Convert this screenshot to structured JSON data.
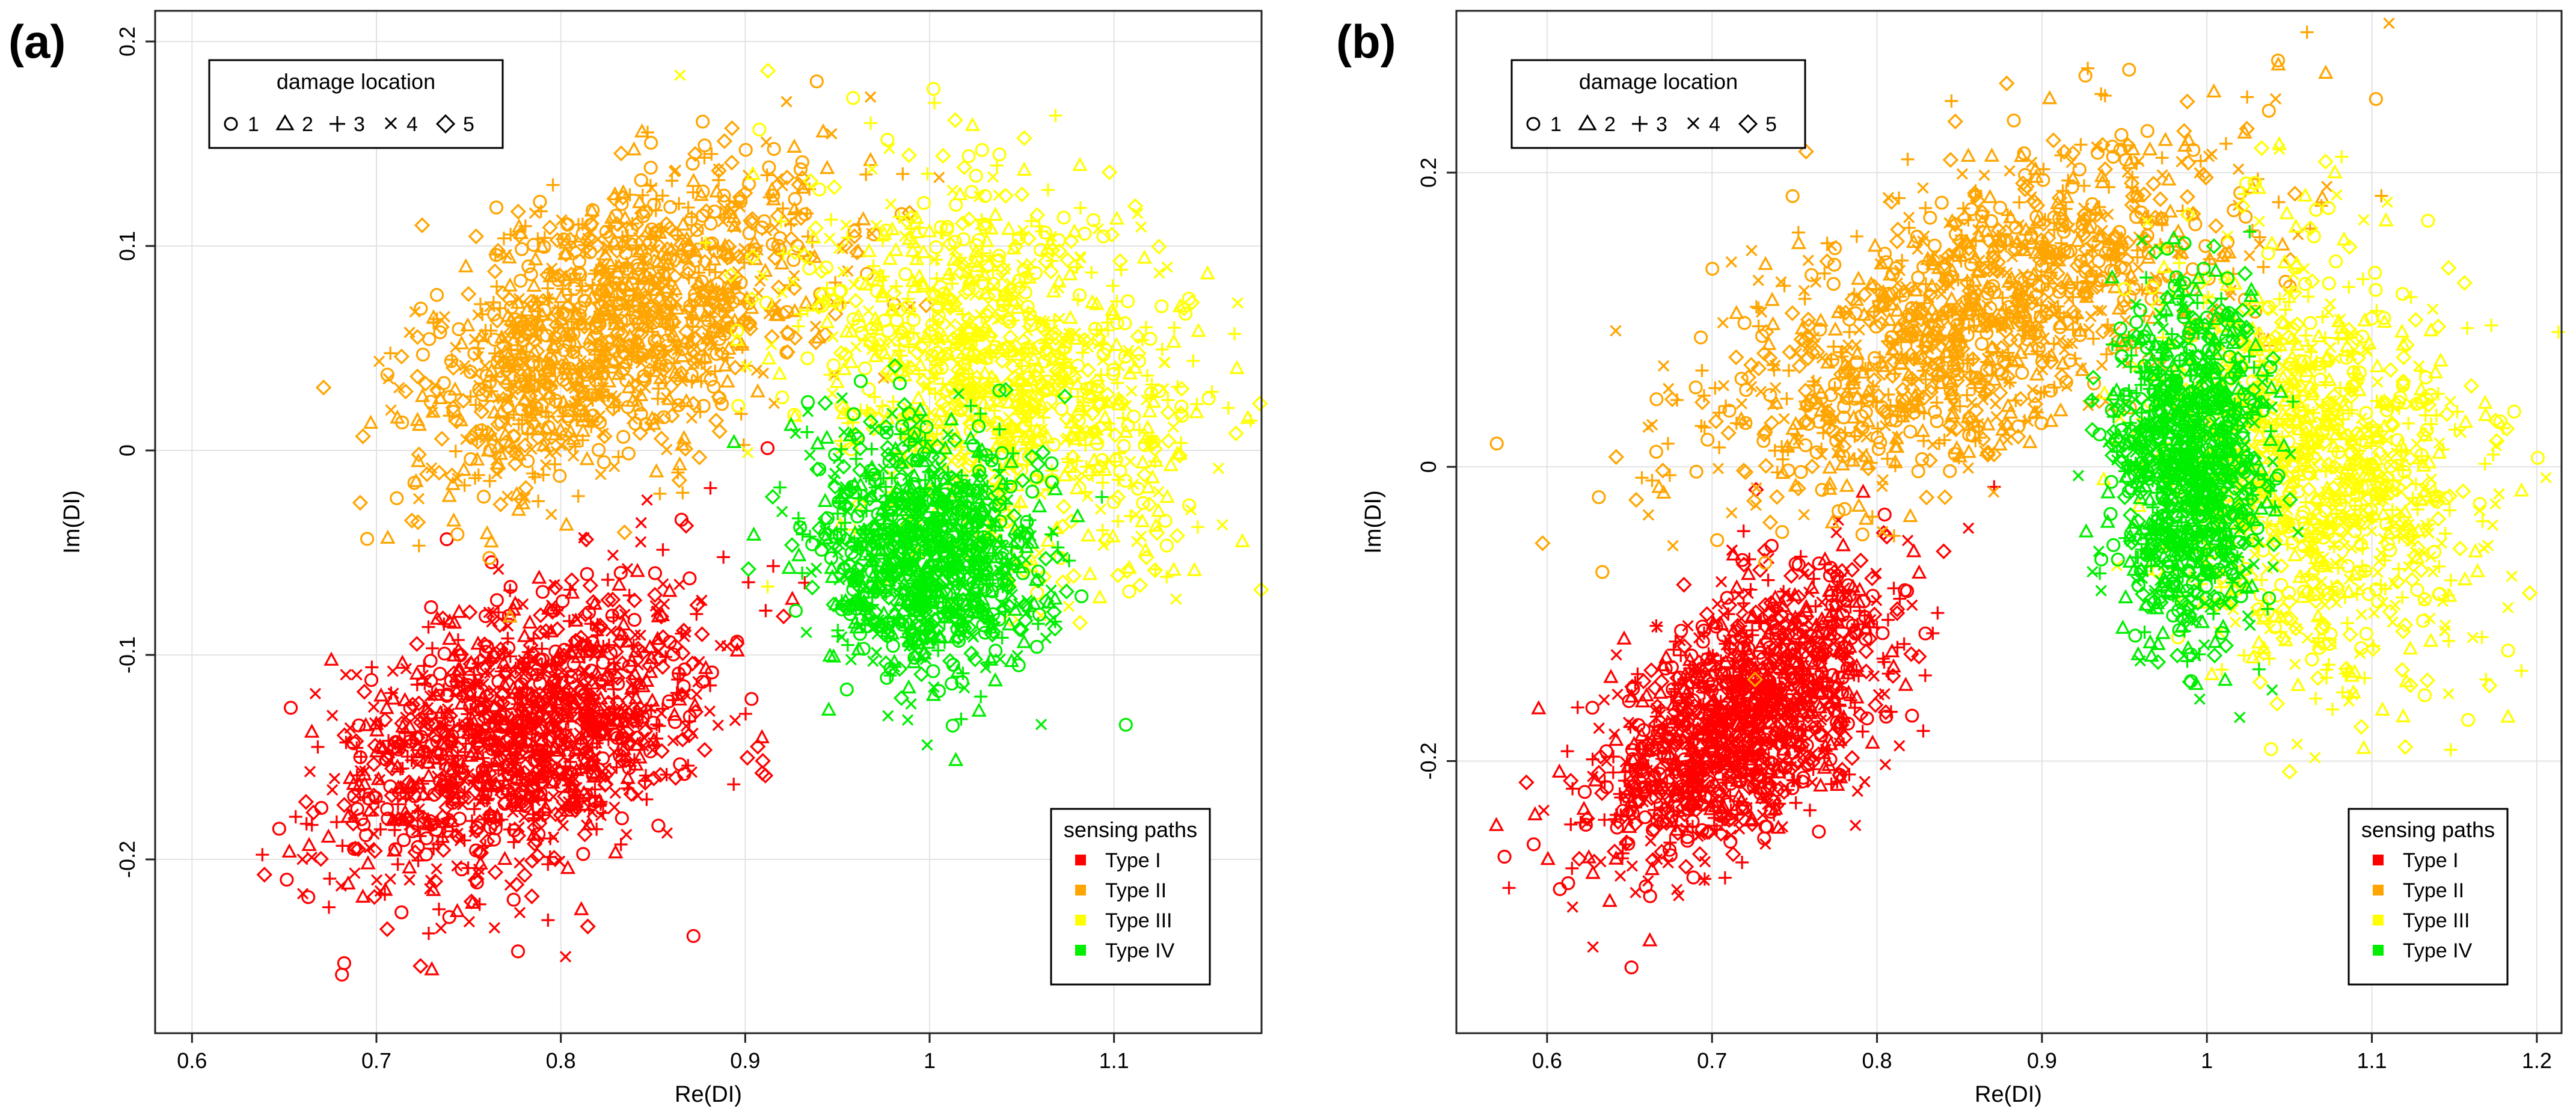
{
  "chart_data": [
    {
      "type": "scatter",
      "panel_label": "(a)",
      "xlabel": "Re(DI)",
      "ylabel": "Im(DI)",
      "xlim": [
        0.58,
        1.18
      ],
      "ylim": [
        -0.285,
        0.215
      ],
      "xticks": [
        0.6,
        0.7,
        0.8,
        0.9,
        1.0,
        1.1
      ],
      "xtick_labels": [
        "0.6",
        "0.7",
        "0.8",
        "0.9",
        "1",
        "1.1"
      ],
      "yticks": [
        -0.2,
        -0.1,
        0.0,
        0.1,
        0.2
      ],
      "ytick_labels": [
        "-0.2",
        "-0.1",
        "0",
        "0.1",
        "0.2"
      ],
      "grid": true,
      "series": [
        {
          "name": "Type I",
          "color": "#ff0000",
          "center": [
            0.78,
            -0.14
          ],
          "spread": [
            0.055,
            0.04
          ],
          "corr": 0.35,
          "count": 1400,
          "markers": [
            1,
            2,
            3,
            4,
            5
          ]
        },
        {
          "name": "Type II",
          "color": "#ffa500",
          "center": [
            0.83,
            0.06
          ],
          "spread": [
            0.06,
            0.045
          ],
          "corr": 0.5,
          "count": 1300,
          "markers": [
            1,
            2,
            3,
            4,
            5
          ]
        },
        {
          "name": "Type III",
          "color": "#ffff00",
          "center": [
            1.04,
            0.04
          ],
          "spread": [
            0.06,
            0.05
          ],
          "corr": -0.3,
          "count": 1100,
          "markers": [
            1,
            2,
            3,
            4,
            5
          ]
        },
        {
          "name": "Type IV",
          "color": "#00ee00",
          "center": [
            1.0,
            -0.05
          ],
          "spread": [
            0.035,
            0.035
          ],
          "corr": -0.1,
          "count": 1100,
          "markers": [
            1,
            2,
            3,
            4,
            5
          ]
        }
      ]
    },
    {
      "type": "scatter",
      "panel_label": "(b)",
      "xlabel": "Re(DI)",
      "ylabel": "Im(DI)",
      "xlim": [
        0.545,
        1.215
      ],
      "ylim": [
        -0.385,
        0.31
      ],
      "xticks": [
        0.6,
        0.7,
        0.8,
        0.9,
        1.0,
        1.1,
        1.2
      ],
      "xtick_labels": [
        "0.6",
        "0.7",
        "0.8",
        "0.9",
        "1",
        "1.1",
        "1.2"
      ],
      "yticks": [
        -0.2,
        0.0,
        0.2
      ],
      "ytick_labels": [
        "-0.2",
        "0",
        "0.2"
      ],
      "grid": true,
      "series": [
        {
          "name": "Type I",
          "color": "#ff0000",
          "center": [
            0.72,
            -0.17
          ],
          "spread": [
            0.05,
            0.055
          ],
          "corr": 0.55,
          "count": 1400,
          "markers": [
            1,
            2,
            3,
            4,
            5
          ]
        },
        {
          "name": "Type II",
          "color": "#ffa500",
          "center": [
            0.86,
            0.1
          ],
          "spread": [
            0.09,
            0.07
          ],
          "corr": 0.6,
          "count": 1300,
          "markers": [
            1,
            2,
            3,
            4,
            5
          ]
        },
        {
          "name": "Type III",
          "color": "#ffff00",
          "center": [
            1.07,
            0.0
          ],
          "spread": [
            0.055,
            0.085
          ],
          "corr": -0.2,
          "count": 1100,
          "markers": [
            1,
            2,
            3,
            4,
            5
          ]
        },
        {
          "name": "Type IV",
          "color": "#00ee00",
          "center": [
            0.99,
            0.0
          ],
          "spread": [
            0.025,
            0.065
          ],
          "corr": 0.0,
          "count": 1100,
          "markers": [
            1,
            2,
            3,
            4,
            5
          ]
        }
      ]
    }
  ],
  "legends": {
    "damage_location": {
      "title": "damage location",
      "items": [
        {
          "symbol": "circle-icon",
          "label": "1"
        },
        {
          "symbol": "triangle-icon",
          "label": "2"
        },
        {
          "symbol": "plus-icon",
          "label": "3"
        },
        {
          "symbol": "cross-icon",
          "label": "4"
        },
        {
          "symbol": "diamond-icon",
          "label": "5"
        }
      ]
    },
    "sensing_paths": {
      "title": "sensing paths",
      "items": [
        {
          "label": "Type I",
          "color": "#ff0000"
        },
        {
          "label": "Type II",
          "color": "#ffa500"
        },
        {
          "label": "Type III",
          "color": "#ffff00"
        },
        {
          "label": "Type IV",
          "color": "#00ee00"
        }
      ]
    }
  }
}
